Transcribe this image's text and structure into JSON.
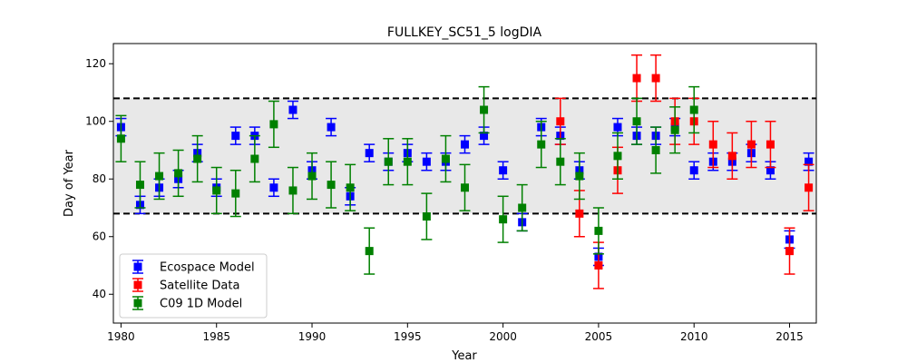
{
  "chart_data": {
    "type": "scatter",
    "title": "FULLKEY_SC51_5 logDIA",
    "xlabel": "Year",
    "ylabel": "Day of Year",
    "xlim": [
      1979.6,
      2016.4
    ],
    "ylim": [
      30,
      127
    ],
    "xticks": [
      1980,
      1985,
      1990,
      1995,
      2000,
      2005,
      2010,
      2015
    ],
    "yticks": [
      40,
      60,
      80,
      100,
      120
    ],
    "grid": false,
    "legend_position": "lower-left",
    "band": {
      "y0": 68,
      "y1": 108,
      "fill": "#e8e8e8",
      "line_color": "#000000"
    },
    "series": [
      {
        "name": "Ecospace Model",
        "color": "#0000ff",
        "points": [
          {
            "x": 1980,
            "y": 98,
            "lo": 95,
            "hi": 101
          },
          {
            "x": 1981,
            "y": 71,
            "lo": 68,
            "hi": 74
          },
          {
            "x": 1982,
            "y": 77,
            "lo": 74,
            "hi": 80
          },
          {
            "x": 1983,
            "y": 80,
            "lo": 77,
            "hi": 83
          },
          {
            "x": 1984,
            "y": 89,
            "lo": 86,
            "hi": 92
          },
          {
            "x": 1985,
            "y": 77,
            "lo": 74,
            "hi": 80
          },
          {
            "x": 1986,
            "y": 95,
            "lo": 92,
            "hi": 98
          },
          {
            "x": 1987,
            "y": 95,
            "lo": 92,
            "hi": 98
          },
          {
            "x": 1988,
            "y": 77,
            "lo": 74,
            "hi": 80
          },
          {
            "x": 1989,
            "y": 104,
            "lo": 101,
            "hi": 107
          },
          {
            "x": 1990,
            "y": 83,
            "lo": 80,
            "hi": 86
          },
          {
            "x": 1991,
            "y": 98,
            "lo": 95,
            "hi": 101
          },
          {
            "x": 1992,
            "y": 74,
            "lo": 71,
            "hi": 77
          },
          {
            "x": 1993,
            "y": 89,
            "lo": 86,
            "hi": 92
          },
          {
            "x": 1994,
            "y": 86,
            "lo": 83,
            "hi": 89
          },
          {
            "x": 1995,
            "y": 89,
            "lo": 86,
            "hi": 92
          },
          {
            "x": 1996,
            "y": 86,
            "lo": 83,
            "hi": 89
          },
          {
            "x": 1997,
            "y": 86,
            "lo": 83,
            "hi": 89
          },
          {
            "x": 1998,
            "y": 92,
            "lo": 89,
            "hi": 95
          },
          {
            "x": 1999,
            "y": 95,
            "lo": 92,
            "hi": 98
          },
          {
            "x": 2000,
            "y": 83,
            "lo": 80,
            "hi": 86
          },
          {
            "x": 2001,
            "y": 65,
            "lo": 62,
            "hi": 68
          },
          {
            "x": 2002,
            "y": 98,
            "lo": 95,
            "hi": 101
          },
          {
            "x": 2003,
            "y": 95,
            "lo": 92,
            "hi": 98
          },
          {
            "x": 2004,
            "y": 83,
            "lo": 80,
            "hi": 86
          },
          {
            "x": 2005,
            "y": 53,
            "lo": 50,
            "hi": 56
          },
          {
            "x": 2006,
            "y": 98,
            "lo": 95,
            "hi": 101
          },
          {
            "x": 2007,
            "y": 95,
            "lo": 92,
            "hi": 98
          },
          {
            "x": 2008,
            "y": 95,
            "lo": 92,
            "hi": 98
          },
          {
            "x": 2009,
            "y": 98,
            "lo": 95,
            "hi": 101
          },
          {
            "x": 2010,
            "y": 83,
            "lo": 80,
            "hi": 86
          },
          {
            "x": 2011,
            "y": 86,
            "lo": 83,
            "hi": 89
          },
          {
            "x": 2012,
            "y": 86,
            "lo": 83,
            "hi": 89
          },
          {
            "x": 2013,
            "y": 89,
            "lo": 86,
            "hi": 92
          },
          {
            "x": 2014,
            "y": 83,
            "lo": 80,
            "hi": 86
          },
          {
            "x": 2015,
            "y": 59,
            "lo": 56,
            "hi": 62
          },
          {
            "x": 2016,
            "y": 86,
            "lo": 83,
            "hi": 89
          }
        ]
      },
      {
        "name": "Satellite Data",
        "color": "#ff0000",
        "points": [
          {
            "x": 2003,
            "y": 100,
            "lo": 92,
            "hi": 108
          },
          {
            "x": 2004,
            "y": 68,
            "lo": 60,
            "hi": 76
          },
          {
            "x": 2005,
            "y": 50,
            "lo": 42,
            "hi": 58
          },
          {
            "x": 2006,
            "y": 83,
            "lo": 75,
            "hi": 91
          },
          {
            "x": 2007,
            "y": 115,
            "lo": 107,
            "hi": 123
          },
          {
            "x": 2008,
            "y": 115,
            "lo": 107,
            "hi": 123
          },
          {
            "x": 2009,
            "y": 100,
            "lo": 92,
            "hi": 108
          },
          {
            "x": 2010,
            "y": 100,
            "lo": 92,
            "hi": 108
          },
          {
            "x": 2011,
            "y": 92,
            "lo": 84,
            "hi": 100
          },
          {
            "x": 2012,
            "y": 88,
            "lo": 80,
            "hi": 96
          },
          {
            "x": 2013,
            "y": 92,
            "lo": 84,
            "hi": 100
          },
          {
            "x": 2014,
            "y": 92,
            "lo": 84,
            "hi": 100
          },
          {
            "x": 2015,
            "y": 55,
            "lo": 47,
            "hi": 63
          },
          {
            "x": 2016,
            "y": 77,
            "lo": 69,
            "hi": 85
          }
        ]
      },
      {
        "name": "C09 1D Model",
        "color": "#008000",
        "points": [
          {
            "x": 1980,
            "y": 94,
            "lo": 86,
            "hi": 102
          },
          {
            "x": 1981,
            "y": 78,
            "lo": 70,
            "hi": 86
          },
          {
            "x": 1982,
            "y": 81,
            "lo": 73,
            "hi": 89
          },
          {
            "x": 1983,
            "y": 82,
            "lo": 74,
            "hi": 90
          },
          {
            "x": 1984,
            "y": 87,
            "lo": 79,
            "hi": 95
          },
          {
            "x": 1985,
            "y": 76,
            "lo": 68,
            "hi": 84
          },
          {
            "x": 1986,
            "y": 75,
            "lo": 67,
            "hi": 83
          },
          {
            "x": 1987,
            "y": 87,
            "lo": 79,
            "hi": 95
          },
          {
            "x": 1988,
            "y": 99,
            "lo": 91,
            "hi": 107
          },
          {
            "x": 1989,
            "y": 76,
            "lo": 68,
            "hi": 84
          },
          {
            "x": 1990,
            "y": 81,
            "lo": 73,
            "hi": 89
          },
          {
            "x": 1991,
            "y": 78,
            "lo": 70,
            "hi": 86
          },
          {
            "x": 1992,
            "y": 77,
            "lo": 69,
            "hi": 85
          },
          {
            "x": 1993,
            "y": 55,
            "lo": 47,
            "hi": 63
          },
          {
            "x": 1994,
            "y": 86,
            "lo": 78,
            "hi": 94
          },
          {
            "x": 1995,
            "y": 86,
            "lo": 78,
            "hi": 94
          },
          {
            "x": 1996,
            "y": 67,
            "lo": 59,
            "hi": 75
          },
          {
            "x": 1997,
            "y": 87,
            "lo": 79,
            "hi": 95
          },
          {
            "x": 1998,
            "y": 77,
            "lo": 69,
            "hi": 85
          },
          {
            "x": 1999,
            "y": 104,
            "lo": 96,
            "hi": 112
          },
          {
            "x": 2000,
            "y": 66,
            "lo": 58,
            "hi": 74
          },
          {
            "x": 2001,
            "y": 70,
            "lo": 62,
            "hi": 78
          },
          {
            "x": 2002,
            "y": 92,
            "lo": 84,
            "hi": 100
          },
          {
            "x": 2003,
            "y": 86,
            "lo": 78,
            "hi": 94
          },
          {
            "x": 2004,
            "y": 81,
            "lo": 73,
            "hi": 89
          },
          {
            "x": 2005,
            "y": 62,
            "lo": 54,
            "hi": 70
          },
          {
            "x": 2006,
            "y": 88,
            "lo": 80,
            "hi": 96
          },
          {
            "x": 2007,
            "y": 100,
            "lo": 92,
            "hi": 108
          },
          {
            "x": 2008,
            "y": 90,
            "lo": 82,
            "hi": 98
          },
          {
            "x": 2009,
            "y": 97,
            "lo": 89,
            "hi": 105
          },
          {
            "x": 2010,
            "y": 104,
            "lo": 96,
            "hi": 112
          }
        ]
      }
    ]
  }
}
